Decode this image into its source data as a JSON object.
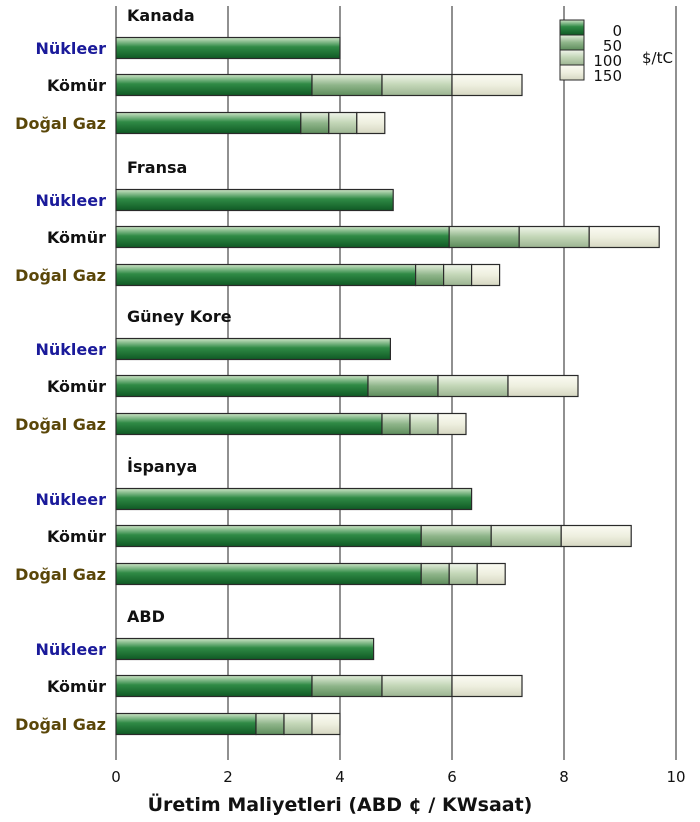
{
  "chart_data": {
    "type": "bar",
    "orientation": "horizontal",
    "stacked": true,
    "xlabel": "Üretim Maliyetleri (ABD ¢ / KWsaat)",
    "xlim": [
      0,
      10
    ],
    "xticks": [
      "0",
      "2",
      "4",
      "6",
      "8",
      "10"
    ],
    "grid": true,
    "legend": {
      "placement": "top-right",
      "unit": "$/tC",
      "entries": [
        "0",
        "50",
        "100",
        "150"
      ],
      "colors": [
        "#1f6e32",
        "#7fa77a",
        "#b6cba8",
        "#ebecd8"
      ]
    },
    "category_colors": {
      "Nükleer": "#1a1a9a",
      "Kömür": "#111111",
      "Doğal Gaz": "#5a4608"
    },
    "groups": [
      {
        "name": "Kanada",
        "bars": [
          {
            "category": "Nükleer",
            "segments": [
              4.0
            ]
          },
          {
            "category": "Kömür",
            "segments": [
              3.5,
              1.25,
              1.25,
              1.25
            ]
          },
          {
            "category": "Doğal Gaz",
            "segments": [
              3.3,
              0.5,
              0.5,
              0.5
            ]
          }
        ]
      },
      {
        "name": "Fransa",
        "bars": [
          {
            "category": "Nükleer",
            "segments": [
              4.95
            ]
          },
          {
            "category": "Kömür",
            "segments": [
              5.95,
              1.25,
              1.25,
              1.25
            ]
          },
          {
            "category": "Doğal Gaz",
            "segments": [
              5.35,
              0.5,
              0.5,
              0.5
            ]
          }
        ]
      },
      {
        "name": "Güney Kore",
        "bars": [
          {
            "category": "Nükleer",
            "segments": [
              4.9
            ]
          },
          {
            "category": "Kömür",
            "segments": [
              4.5,
              1.25,
              1.25,
              1.25
            ]
          },
          {
            "category": "Doğal Gaz",
            "segments": [
              4.75,
              0.5,
              0.5,
              0.5
            ]
          }
        ]
      },
      {
        "name": "İspanya",
        "bars": [
          {
            "category": "Nükleer",
            "segments": [
              6.35
            ]
          },
          {
            "category": "Kömür",
            "segments": [
              5.45,
              1.25,
              1.25,
              1.25
            ]
          },
          {
            "category": "Doğal Gaz",
            "segments": [
              5.45,
              0.5,
              0.5,
              0.5
            ]
          }
        ]
      },
      {
        "name": "ABD",
        "bars": [
          {
            "category": "Nükleer",
            "segments": [
              4.6
            ]
          },
          {
            "category": "Kömür",
            "segments": [
              3.5,
              1.25,
              1.25,
              1.25
            ]
          },
          {
            "category": "Doğal Gaz",
            "segments": [
              2.5,
              0.5,
              0.5,
              0.5
            ]
          }
        ]
      }
    ]
  }
}
